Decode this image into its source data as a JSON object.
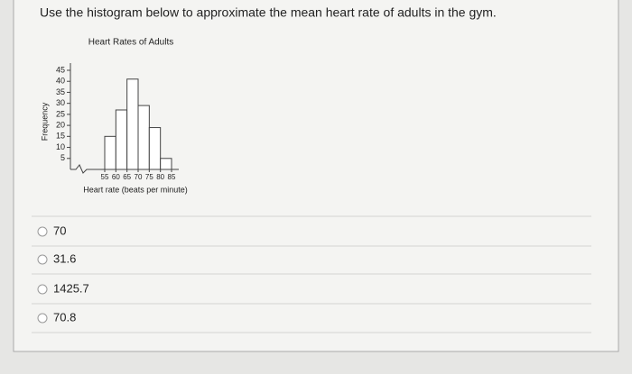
{
  "question": "Use the histogram below to approximate the mean heart rate of adults in the gym.",
  "chart_data": {
    "type": "histogram",
    "title": "Heart Rates of Adults",
    "x_label": "Heart rate (beats per minute)",
    "y_label": "Frequency",
    "bins": [
      55,
      60,
      65,
      70,
      75,
      80,
      85
    ],
    "counts": [
      15,
      27,
      41,
      29,
      19,
      5
    ],
    "color": "#ffffff",
    "edgecolor": "#444444",
    "ylim": [
      0,
      45
    ],
    "yticks": [
      5,
      10,
      15,
      20,
      25,
      30,
      35,
      40,
      45
    ]
  },
  "options": [
    "70",
    "31.6",
    "1425.7",
    "70.8"
  ]
}
